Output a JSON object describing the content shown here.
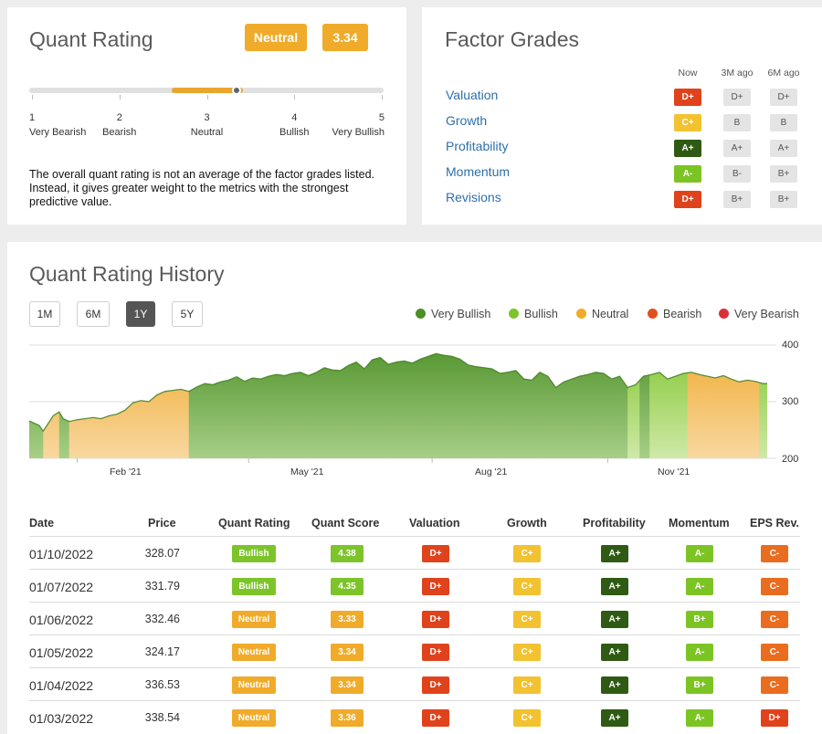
{
  "quant_rating": {
    "title": "Quant Rating",
    "rating_label": "Neutral",
    "rating_value": "3.34",
    "rating_value_numeric": 3.34,
    "scale": [
      {
        "num": "1",
        "label": "Very Bearish"
      },
      {
        "num": "2",
        "label": "Bearish"
      },
      {
        "num": "3",
        "label": "Neutral"
      },
      {
        "num": "4",
        "label": "Bullish"
      },
      {
        "num": "5",
        "label": "Very Bullish"
      }
    ],
    "note": "The overall quant rating is not an average of the factor grades listed. Instead, it gives greater weight to the metrics with the strongest predictive value."
  },
  "factor_grades": {
    "title": "Factor Grades",
    "columns": [
      "Now",
      "3M ago",
      "6M ago"
    ],
    "rows": [
      {
        "name": "Valuation",
        "now": "D+",
        "m3": "D+",
        "m6": "D+",
        "now_color": "#e0431c"
      },
      {
        "name": "Growth",
        "now": "C+",
        "m3": "B",
        "m6": "B",
        "now_color": "#f2c230"
      },
      {
        "name": "Profitability",
        "now": "A+",
        "m3": "A+",
        "m6": "A+",
        "now_color": "#2f5a14"
      },
      {
        "name": "Momentum",
        "now": "A-",
        "m3": "B-",
        "m6": "B+",
        "now_color": "#7cc424"
      },
      {
        "name": "Revisions",
        "now": "D+",
        "m3": "B+",
        "m6": "B+",
        "now_color": "#e0431c"
      }
    ]
  },
  "history": {
    "title": "Quant Rating History",
    "ranges": [
      "1M",
      "6M",
      "1Y",
      "5Y"
    ],
    "active_range": "1Y",
    "legend": [
      {
        "label": "Very Bullish",
        "color": "#4b8f26"
      },
      {
        "label": "Bullish",
        "color": "#7dc42a"
      },
      {
        "label": "Neutral",
        "color": "#f0ab2a"
      },
      {
        "label": "Bearish",
        "color": "#e0501c"
      },
      {
        "label": "Very Bearish",
        "color": "#d9303a"
      }
    ]
  },
  "chart_data": {
    "type": "area",
    "title": "Quant Rating History",
    "ylim": [
      200,
      400
    ],
    "yticks": [
      "400",
      "300",
      "200"
    ],
    "xticks": [
      "Feb '21",
      "May '21",
      "Aug '21",
      "Nov '21"
    ],
    "x_range_days": [
      0,
      370
    ],
    "xtick_positions_days": [
      24,
      110,
      202,
      290
    ],
    "series_x": [
      0,
      5,
      7,
      12,
      15,
      17,
      20,
      24,
      28,
      32,
      36,
      40,
      44,
      48,
      52,
      56,
      60,
      64,
      68,
      72,
      76,
      80,
      84,
      88,
      92,
      96,
      100,
      104,
      108,
      112,
      116,
      120,
      124,
      128,
      132,
      136,
      140,
      144,
      148,
      152,
      156,
      160,
      164,
      168,
      172,
      176,
      180,
      184,
      188,
      192,
      196,
      200,
      204,
      208,
      212,
      216,
      220,
      224,
      228,
      232,
      236,
      240,
      244,
      248,
      252,
      256,
      260,
      264,
      268,
      272,
      276,
      280,
      284,
      288,
      292,
      296,
      300,
      304,
      308,
      312,
      316,
      320,
      324,
      328,
      332,
      336,
      340,
      344,
      348,
      352,
      356,
      360,
      364,
      368,
      370
    ],
    "values": [
      266,
      258,
      248,
      275,
      282,
      270,
      265,
      268,
      270,
      272,
      270,
      275,
      278,
      285,
      298,
      302,
      300,
      312,
      318,
      320,
      322,
      318,
      326,
      332,
      330,
      335,
      338,
      344,
      336,
      342,
      340,
      345,
      348,
      346,
      350,
      352,
      346,
      352,
      360,
      356,
      355,
      364,
      370,
      358,
      374,
      378,
      366,
      370,
      372,
      368,
      375,
      380,
      385,
      382,
      380,
      375,
      365,
      362,
      360,
      358,
      350,
      352,
      355,
      340,
      338,
      352,
      345,
      325,
      335,
      340,
      345,
      348,
      352,
      350,
      340,
      345,
      325,
      330,
      345,
      348,
      352,
      340,
      345,
      350,
      352,
      348,
      345,
      342,
      346,
      340,
      335,
      338,
      336,
      332,
      332
    ],
    "segments": [
      {
        "from": 0,
        "to": 7,
        "rating": "Very Bullish"
      },
      {
        "from": 7,
        "to": 15,
        "rating": "Neutral"
      },
      {
        "from": 15,
        "to": 20,
        "rating": "Very Bullish"
      },
      {
        "from": 20,
        "to": 80,
        "rating": "Neutral"
      },
      {
        "from": 80,
        "to": 300,
        "rating": "Very Bullish"
      },
      {
        "from": 300,
        "to": 306,
        "rating": "Bullish"
      },
      {
        "from": 306,
        "to": 311,
        "rating": "Very Bullish"
      },
      {
        "from": 311,
        "to": 330,
        "rating": "Bullish"
      },
      {
        "from": 330,
        "to": 366,
        "rating": "Neutral"
      },
      {
        "from": 366,
        "to": 370,
        "rating": "Bullish"
      }
    ]
  },
  "table": {
    "headers": [
      "Date",
      "Price",
      "Quant Rating",
      "Quant Score",
      "Valuation",
      "Growth",
      "Profitability",
      "Momentum",
      "EPS Rev."
    ],
    "rows": [
      {
        "date": "01/10/2022",
        "price": "328.07",
        "rating": "Bullish",
        "score": "4.38",
        "valuation": "D+",
        "growth": "C+",
        "profitability": "A+",
        "momentum": "A-",
        "eps": "C-"
      },
      {
        "date": "01/07/2022",
        "price": "331.79",
        "rating": "Bullish",
        "score": "4.35",
        "valuation": "D+",
        "growth": "C+",
        "profitability": "A+",
        "momentum": "A-",
        "eps": "C-"
      },
      {
        "date": "01/06/2022",
        "price": "332.46",
        "rating": "Neutral",
        "score": "3.33",
        "valuation": "D+",
        "growth": "C+",
        "profitability": "A+",
        "momentum": "B+",
        "eps": "C-"
      },
      {
        "date": "01/05/2022",
        "price": "324.17",
        "rating": "Neutral",
        "score": "3.34",
        "valuation": "D+",
        "growth": "C+",
        "profitability": "A+",
        "momentum": "A-",
        "eps": "C-"
      },
      {
        "date": "01/04/2022",
        "price": "336.53",
        "rating": "Neutral",
        "score": "3.34",
        "valuation": "D+",
        "growth": "C+",
        "profitability": "A+",
        "momentum": "B+",
        "eps": "C-"
      },
      {
        "date": "01/03/2022",
        "price": "338.54",
        "rating": "Neutral",
        "score": "3.36",
        "valuation": "D+",
        "growth": "C+",
        "profitability": "A+",
        "momentum": "A-",
        "eps": "D+"
      }
    ]
  },
  "colors": {
    "bullish": "#7dc42a",
    "very_bullish": "#4b8f26",
    "neutral": "#f0ab2a",
    "score_bullish": "#7dc42a",
    "score_neutral": "#f0ab2a",
    "grade_d": "#e0431c",
    "grade_c": "#f2c230",
    "grade_aplus": "#2f5a14",
    "grade_a": "#7cc424",
    "grade_cminus": "#ea6c1f",
    "grey": "#e4e4e4"
  }
}
